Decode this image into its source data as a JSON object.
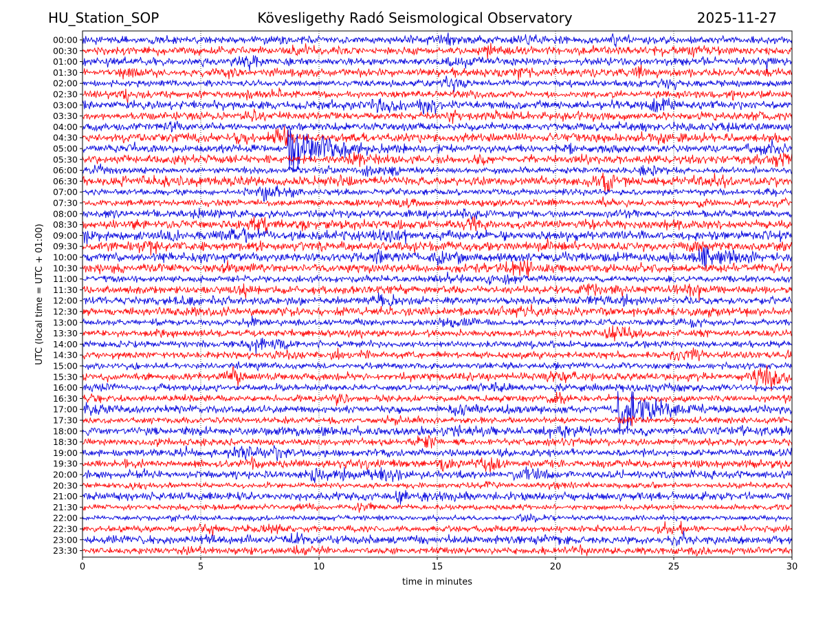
{
  "chart_data": {
    "type": "helicorder",
    "station": "HU_Station_SOP",
    "title": "Kövesligethy Radó Seismological Observatory",
    "date": "2025-11-27",
    "xlabel": "time in minutes",
    "ylabel": "UTC (local time = UTC + 01:00)",
    "xlim": [
      0,
      30
    ],
    "x_ticks": [
      0,
      5,
      10,
      15,
      20,
      25,
      30
    ],
    "grid": "vertical dotted",
    "rows": [
      "00:00",
      "00:30",
      "01:00",
      "01:30",
      "02:00",
      "02:30",
      "03:00",
      "03:30",
      "04:00",
      "04:30",
      "05:00",
      "05:30",
      "06:00",
      "06:30",
      "07:00",
      "07:30",
      "08:00",
      "08:30",
      "09:00",
      "09:30",
      "10:00",
      "10:30",
      "11:00",
      "11:30",
      "12:00",
      "12:30",
      "13:00",
      "13:30",
      "14:00",
      "14:30",
      "15:00",
      "15:30",
      "16:00",
      "16:30",
      "17:00",
      "17:30",
      "18:00",
      "18:30",
      "19:00",
      "19:30",
      "20:00",
      "20:30",
      "21:00",
      "21:30",
      "22:00",
      "22:30",
      "23:00",
      "23:30"
    ],
    "colors": [
      "#0000dd",
      "#ff0000"
    ],
    "events": [
      {
        "row": "05:00",
        "start_min": 8.7,
        "peak_amplitude": 3.4,
        "coda_min": 4.5
      },
      {
        "row": "10:00",
        "start_min": 26.2,
        "peak_amplitude": 1.4,
        "coda_min": 2.8
      },
      {
        "row": "17:00",
        "start_min": 22.6,
        "peak_amplitude": 3.2,
        "coda_min": 4.5
      }
    ]
  }
}
